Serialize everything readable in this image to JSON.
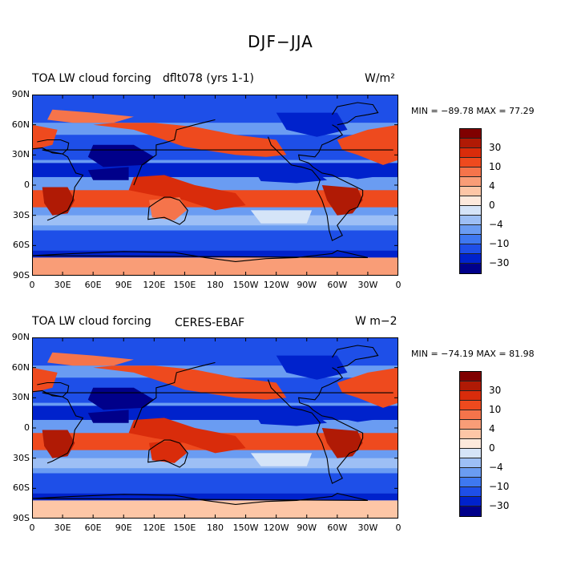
{
  "title": "DJF−JJA",
  "colors": [
    "#00008a",
    "#0022cc",
    "#1e4fe8",
    "#3e78f0",
    "#6a9cf2",
    "#9dbff5",
    "#d5e4f8",
    "#fde9dc",
    "#fdc6a6",
    "#f99d77",
    "#f5744b",
    "#ee4a1e",
    "#d92c0b",
    "#b01a05",
    "#800000"
  ],
  "colorbar_labels": [
    "30",
    "10",
    "4",
    "0",
    "−4",
    "−10",
    "−30"
  ],
  "x_ticks": [
    "0",
    "30E",
    "60E",
    "90E",
    "120E",
    "150E",
    "180",
    "150W",
    "120W",
    "90W",
    "60W",
    "30W",
    "0"
  ],
  "y_ticks": [
    "90N",
    "60N",
    "30N",
    "0",
    "30S",
    "60S",
    "90S"
  ],
  "panels": [
    {
      "left_title": "TOA LW cloud forcing",
      "center_title": "dflt078 (yrs 1-1)",
      "units": "W/m²",
      "minmax": "MIN = −89.78 MAX =  77.29"
    },
    {
      "left_title": "TOA LW cloud forcing",
      "center_title": "CERES-EBAF",
      "units": "W m−2",
      "minmax": "MIN = −74.19 MAX =  81.98"
    }
  ]
}
